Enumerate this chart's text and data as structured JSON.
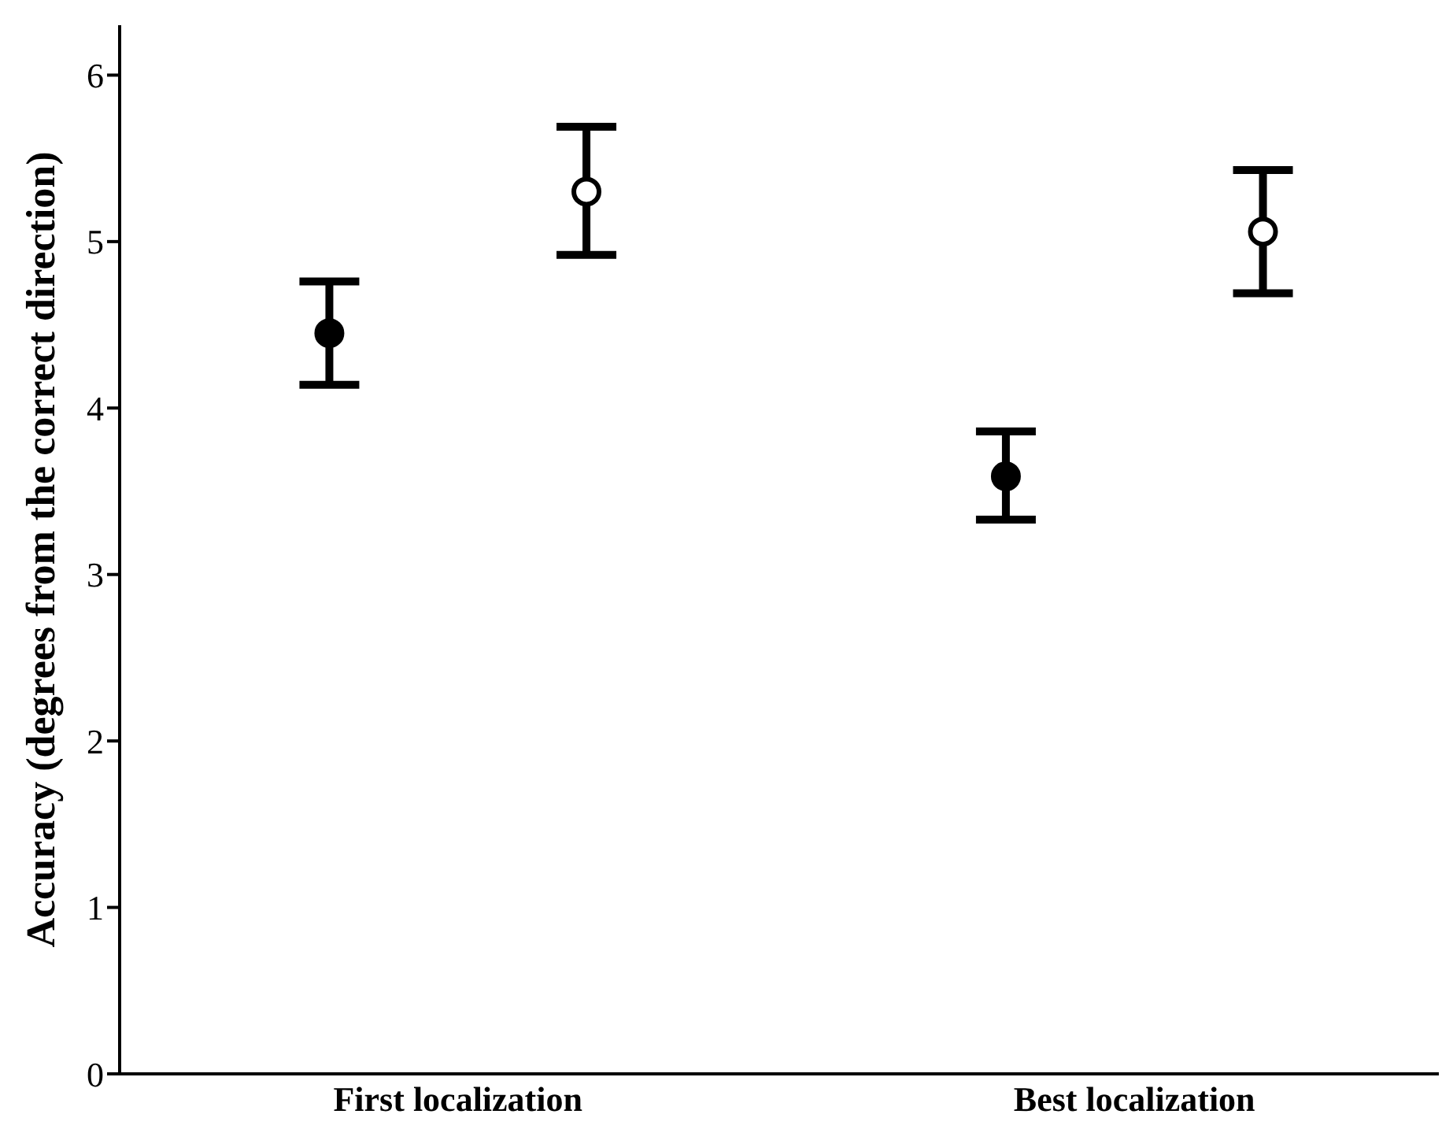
{
  "chart_data": {
    "type": "scatter",
    "ylabel": "Accuracy (degrees from the correct direction)",
    "categories": [
      "First localization",
      "Best localization"
    ],
    "series": [
      {
        "color": "#000000",
        "values": [
          4.45,
          3.59
        ],
        "errors": [
          [
            4.14,
            4.76
          ],
          [
            3.33,
            3.86
          ]
        ]
      },
      {
        "color": "#ffffff",
        "values": [
          5.3,
          5.06
        ],
        "errors": [
          [
            4.92,
            5.69
          ],
          [
            4.69,
            5.43
          ]
        ]
      }
    ],
    "ylim": [
      0,
      6.3
    ],
    "yticks": [
      0,
      1,
      2,
      3,
      4,
      5,
      6
    ],
    "grid": false,
    "legend": false,
    "marker": "circle"
  }
}
